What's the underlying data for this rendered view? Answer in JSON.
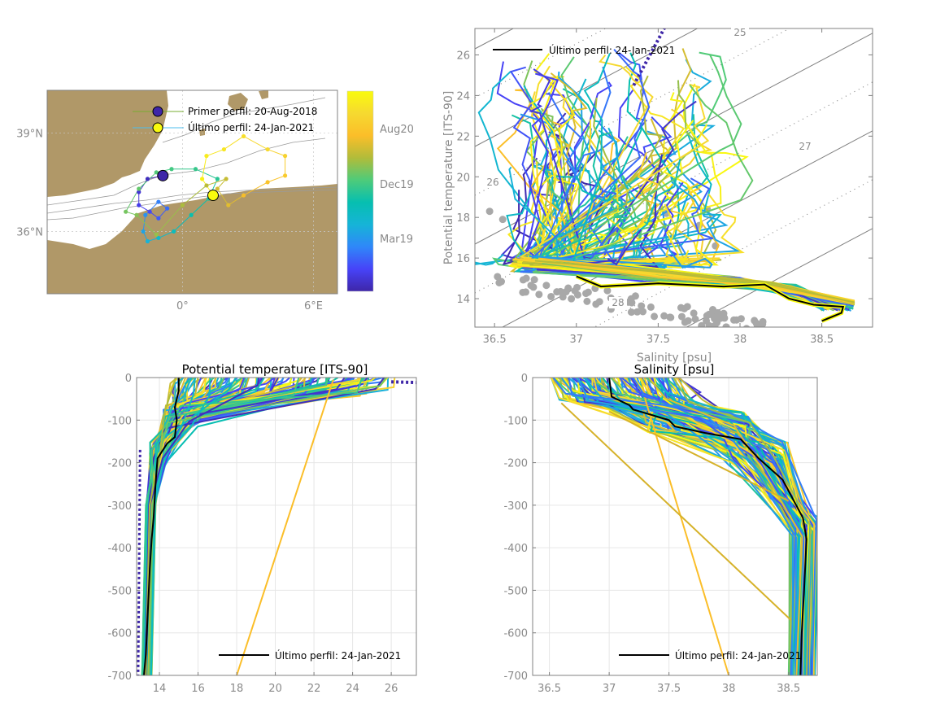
{
  "colors": {
    "land": "#b09868",
    "axis": "#808080",
    "grid": "#e6e6e6",
    "tick_text": "#8a8a8a",
    "last_profile": "#000000",
    "parula": [
      "#3e26a8",
      "#4743f8",
      "#2f87f9",
      "#16b4d7",
      "#06bfb0",
      "#4ecb7a",
      "#b1bc3a",
      "#fbbe29",
      "#f6d930",
      "#f9fb0e"
    ],
    "reference_points": "#a8a8a8"
  },
  "chart_data": [
    {
      "id": "map",
      "type": "scatter",
      "title": "",
      "xlabel": "",
      "ylabel": "",
      "x_ticks": [
        "0°",
        "6°E"
      ],
      "x_tick_values": [
        0,
        6
      ],
      "y_ticks": [
        "39°N",
        "36°N"
      ],
      "y_tick_values": [
        39,
        36
      ],
      "xlim": [
        -6.2,
        7.1
      ],
      "ylim": [
        34.1,
        40.3
      ],
      "grid": true,
      "legend": [
        {
          "label": "Primer perfil: 20-Aug-2018",
          "marker": "circle",
          "color": "#3e26a8"
        },
        {
          "label": "Último perfil: 24-Jan-2021",
          "marker": "circle",
          "color": "#f9fb0e"
        }
      ],
      "legend_position": "top-right",
      "first_profile": {
        "lon": -0.9,
        "lat": 37.7
      },
      "last_profile": {
        "lon": 1.4,
        "lat": 37.1
      },
      "track": [
        {
          "lon": -0.9,
          "lat": 37.7,
          "t": 0.0
        },
        {
          "lon": -1.6,
          "lat": 37.6,
          "t": 0.03
        },
        {
          "lon": -2.0,
          "lat": 37.2,
          "t": 0.06
        },
        {
          "lon": -2.0,
          "lat": 36.8,
          "t": 0.09
        },
        {
          "lon": -1.5,
          "lat": 36.6,
          "t": 0.12
        },
        {
          "lon": -1.1,
          "lat": 36.4,
          "t": 0.15
        },
        {
          "lon": -0.7,
          "lat": 36.7,
          "t": 0.18
        },
        {
          "lon": -1.1,
          "lat": 36.9,
          "t": 0.21
        },
        {
          "lon": -1.7,
          "lat": 36.5,
          "t": 0.25
        },
        {
          "lon": -1.8,
          "lat": 36.0,
          "t": 0.29
        },
        {
          "lon": -1.6,
          "lat": 35.7,
          "t": 0.33
        },
        {
          "lon": -1.1,
          "lat": 35.8,
          "t": 0.37
        },
        {
          "lon": -0.4,
          "lat": 36.0,
          "t": 0.41
        },
        {
          "lon": 0.4,
          "lat": 36.5,
          "t": 0.45
        },
        {
          "lon": 1.2,
          "lat": 37.0,
          "t": 0.48
        },
        {
          "lon": 1.6,
          "lat": 37.6,
          "t": 0.5
        },
        {
          "lon": 0.6,
          "lat": 37.9,
          "t": 0.52
        },
        {
          "lon": -0.5,
          "lat": 37.9,
          "t": 0.54
        },
        {
          "lon": -1.2,
          "lat": 37.8,
          "t": 0.56
        },
        {
          "lon": -2.0,
          "lat": 37.3,
          "t": 0.58
        },
        {
          "lon": -2.6,
          "lat": 36.6,
          "t": 0.6
        },
        {
          "lon": -2.1,
          "lat": 36.5,
          "t": 0.62
        },
        {
          "lon": -1.2,
          "lat": 35.9,
          "t": 0.64
        },
        {
          "lon": 0.0,
          "lat": 36.8,
          "t": 0.66
        },
        {
          "lon": 1.1,
          "lat": 37.4,
          "t": 0.68
        },
        {
          "lon": 2.0,
          "lat": 37.6,
          "t": 0.7
        },
        {
          "lon": 1.6,
          "lat": 37.3,
          "t": 0.72
        },
        {
          "lon": 2.1,
          "lat": 36.8,
          "t": 0.74
        },
        {
          "lon": 2.8,
          "lat": 37.1,
          "t": 0.77
        },
        {
          "lon": 3.9,
          "lat": 37.5,
          "t": 0.8
        },
        {
          "lon": 4.7,
          "lat": 37.7,
          "t": 0.83
        },
        {
          "lon": 4.7,
          "lat": 38.3,
          "t": 0.86
        },
        {
          "lon": 3.9,
          "lat": 38.5,
          "t": 0.89
        },
        {
          "lon": 2.8,
          "lat": 38.9,
          "t": 0.91
        },
        {
          "lon": 1.9,
          "lat": 38.5,
          "t": 0.93
        },
        {
          "lon": 1.1,
          "lat": 38.3,
          "t": 0.95
        },
        {
          "lon": 0.9,
          "lat": 37.6,
          "t": 0.97
        },
        {
          "lon": 1.4,
          "lat": 37.1,
          "t": 1.0
        }
      ]
    },
    {
      "id": "colorbar",
      "type": "heatmap",
      "tick_labels": [
        "Aug20",
        "Dec19",
        "Mar19"
      ],
      "tick_positions": [
        0.82,
        0.55,
        0.28
      ],
      "range_labels": [
        "20-Aug-2018",
        "24-Jan-2021"
      ]
    },
    {
      "id": "ts_diagram",
      "type": "line",
      "title": "",
      "xlabel": "Salinity [psu]",
      "ylabel": "Potential temperature [ITS-90]",
      "x_ticks": [
        "36.5",
        "37",
        "37.5",
        "38",
        "38.5"
      ],
      "x_tick_values": [
        36.5,
        37,
        37.5,
        38,
        38.5
      ],
      "y_ticks": [
        "14",
        "16",
        "18",
        "20",
        "22",
        "24",
        "26"
      ],
      "y_tick_values": [
        14,
        16,
        18,
        20,
        22,
        24,
        26
      ],
      "xlim": [
        36.38,
        38.81
      ],
      "ylim": [
        12.6,
        27.3
      ],
      "isopycnal_labels": [
        "25",
        "26",
        "27",
        "28"
      ],
      "legend": [
        {
          "label": "Último perfil: 24-Jan-2021",
          "color": "#000000"
        }
      ],
      "legend_position": "top-left",
      "last_profile": {
        "salinity": [
          37.0,
          37.15,
          37.5,
          37.9,
          38.15,
          38.3,
          38.45,
          38.63,
          38.62,
          38.5
        ],
        "temperature": [
          15.1,
          14.6,
          14.75,
          14.6,
          14.7,
          14.0,
          13.7,
          13.6,
          13.3,
          12.9
        ]
      }
    },
    {
      "id": "temperature_profile",
      "type": "line",
      "title": "Potential temperature [ITS-90]",
      "xlabel": "",
      "ylabel": "",
      "x_ticks": [
        "14",
        "16",
        "18",
        "20",
        "22",
        "24",
        "26"
      ],
      "x_tick_values": [
        14,
        16,
        18,
        20,
        22,
        24,
        26
      ],
      "y_ticks": [
        "0",
        "-100",
        "-200",
        "-300",
        "-400",
        "-500",
        "-600",
        "-700"
      ],
      "y_tick_values": [
        0,
        -100,
        -200,
        -300,
        -400,
        -500,
        -600,
        -700
      ],
      "xlim": [
        12.82,
        27.3
      ],
      "ylim": [
        -700,
        0
      ],
      "grid": true,
      "legend": [
        {
          "label": "Último perfil: 24-Jan-2021",
          "color": "#000000"
        }
      ],
      "legend_position": "bottom-right",
      "last_profile": {
        "temperature": [
          15.0,
          15.0,
          14.9,
          14.8,
          14.9,
          14.8,
          14.4,
          13.9,
          13.8,
          13.7,
          13.6,
          13.5,
          13.4,
          13.3,
          13.2
        ],
        "depth": [
          0,
          -30,
          -50,
          -70,
          -100,
          -140,
          -155,
          -190,
          -250,
          -330,
          -380,
          -450,
          -550,
          -650,
          -700
        ]
      }
    },
    {
      "id": "salinity_profile",
      "type": "line",
      "title": "Salinity [psu]",
      "xlabel": "",
      "ylabel": "",
      "x_ticks": [
        "36.5",
        "37",
        "37.5",
        "38",
        "38.5"
      ],
      "x_tick_values": [
        36.5,
        37,
        37.5,
        38,
        38.5
      ],
      "y_ticks": [
        "0",
        "-100",
        "-200",
        "-300",
        "-400",
        "-500",
        "-600",
        "-700"
      ],
      "y_tick_values": [
        0,
        -100,
        -200,
        -300,
        -400,
        -500,
        -600,
        -700
      ],
      "xlim": [
        36.36,
        38.74
      ],
      "ylim": [
        -700,
        0
      ],
      "grid": true,
      "legend": [
        {
          "label": "Último perfil: 24-Jan-2021",
          "color": "#000000"
        }
      ],
      "legend_position": "bottom-right",
      "last_profile": {
        "salinity": [
          37.0,
          37.02,
          37.17,
          37.2,
          37.5,
          37.55,
          37.8,
          38.1,
          38.25,
          38.45,
          38.62,
          38.65,
          38.63,
          38.61,
          38.6
        ],
        "depth": [
          0,
          -45,
          -65,
          -75,
          -100,
          -115,
          -130,
          -145,
          -190,
          -240,
          -330,
          -380,
          -500,
          -600,
          -700
        ]
      }
    }
  ]
}
